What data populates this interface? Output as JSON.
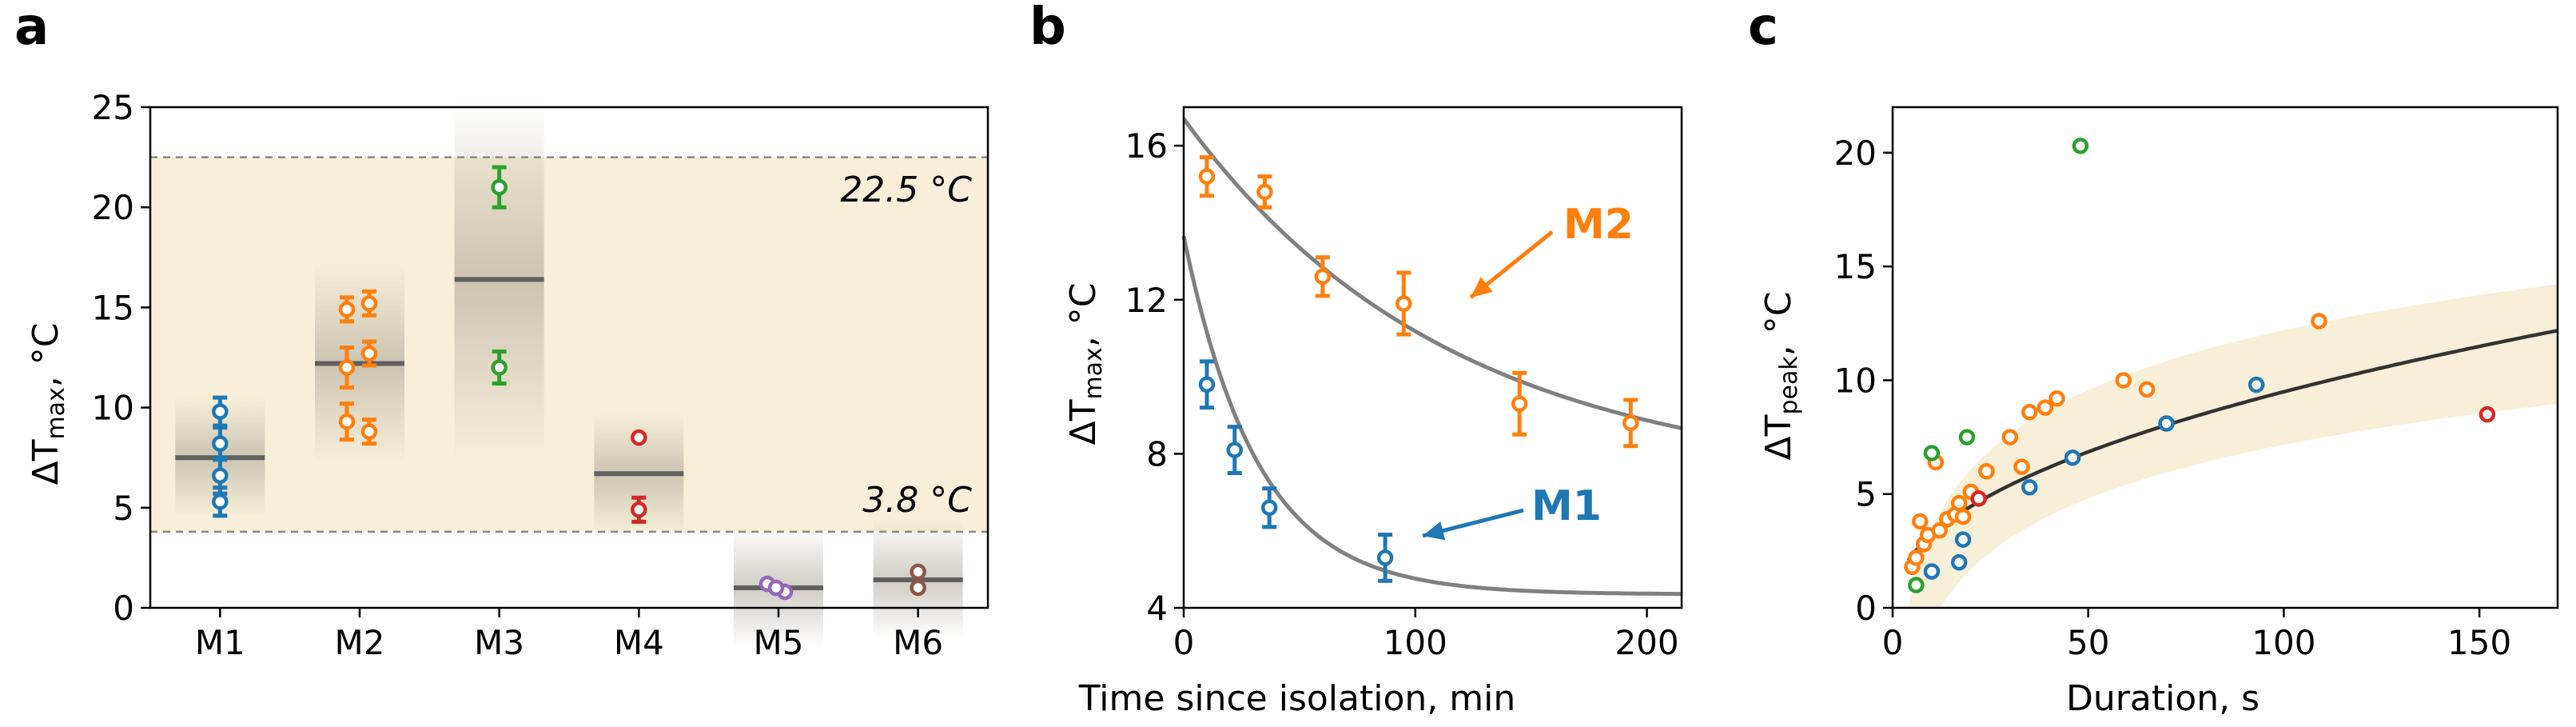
{
  "panels": {
    "a": "a",
    "b": "b",
    "c": "c"
  },
  "colors": {
    "M1": "#1f77b4",
    "M2": "#ff7f0e",
    "M3": "#2ca02c",
    "M4": "#d62728",
    "M5": "#9467bd",
    "M6": "#8c564b",
    "band": "#f7efd8",
    "fit": "#808080",
    "median": "#606060",
    "curve": "#333333"
  },
  "chart_data": [
    {
      "id": "a",
      "type": "scatter",
      "title": "",
      "xlabel": "",
      "ylabel_main": "ΔT",
      "ylabel_sub": "max",
      "ylabel_unit": ", °C",
      "categories": [
        "M1",
        "M2",
        "M3",
        "M4",
        "M5",
        "M6"
      ],
      "ylim": [
        0,
        25
      ],
      "yticks": [
        0,
        5,
        10,
        15,
        20,
        25
      ],
      "reference_lines": [
        {
          "value": 22.5,
          "label": "22.5 °C"
        },
        {
          "value": 3.8,
          "label": "3.8 °C"
        }
      ],
      "band": [
        3.8,
        22.5
      ],
      "medians": [
        7.5,
        12.2,
        16.4,
        6.7,
        1.0,
        1.4
      ],
      "points": [
        {
          "category": "M1",
          "values": [
            9.8,
            8.2,
            6.6,
            5.3
          ],
          "errors": [
            0.7,
            0.8,
            0.9,
            0.7
          ]
        },
        {
          "category": "M2",
          "values": [
            14.9,
            15.2,
            12.7,
            12.0,
            9.3,
            8.8
          ],
          "errors": [
            0.6,
            0.6,
            0.6,
            1.0,
            0.9,
            0.6
          ]
        },
        {
          "category": "M3",
          "values": [
            21.0,
            12.0
          ],
          "errors": [
            1.0,
            0.8
          ]
        },
        {
          "category": "M4",
          "values": [
            8.5,
            4.9
          ],
          "errors": [
            0,
            0.6
          ]
        },
        {
          "category": "M5",
          "values": [
            1.2,
            0.8,
            1.0
          ],
          "errors": [
            0,
            0,
            0
          ]
        },
        {
          "category": "M6",
          "values": [
            1.8,
            1.0
          ],
          "errors": [
            0,
            0
          ]
        }
      ]
    },
    {
      "id": "b",
      "type": "scatter",
      "xlabel": "Time since isolation, min",
      "ylabel_main": "ΔT",
      "ylabel_sub": "max",
      "ylabel_unit": ", °C",
      "xlim": [
        0,
        215
      ],
      "ylim": [
        4,
        17
      ],
      "xticks": [
        0,
        100,
        200
      ],
      "yticks": [
        4,
        8,
        12,
        16
      ],
      "series": [
        {
          "name": "M1",
          "x": [
            10,
            22,
            37,
            87
          ],
          "y": [
            9.8,
            8.1,
            6.6,
            5.3
          ],
          "errors": [
            0.6,
            0.6,
            0.5,
            0.6
          ],
          "fit": {
            "form": "exponential",
            "a": 9.3,
            "tau": 32,
            "c": 4.35
          }
        },
        {
          "name": "M2",
          "x": [
            10,
            35,
            60,
            95,
            145,
            193
          ],
          "y": [
            15.2,
            14.8,
            12.6,
            11.9,
            9.3,
            8.8
          ],
          "errors": [
            0.5,
            0.4,
            0.5,
            0.8,
            0.8,
            0.6
          ],
          "fit": {
            "form": "exponential",
            "a": 9.5,
            "tau": 115,
            "c": 7.2
          }
        }
      ],
      "callouts": [
        {
          "label": "M2",
          "series": "M2"
        },
        {
          "label": "M1",
          "series": "M1"
        }
      ]
    },
    {
      "id": "c",
      "type": "scatter",
      "xlabel": "Duration, s",
      "ylabel_main": "ΔT",
      "ylabel_sub": "peak",
      "ylabel_unit": ", °C",
      "xlim": [
        0,
        170
      ],
      "ylim": [
        0,
        22
      ],
      "xticks": [
        0,
        50,
        100,
        150
      ],
      "yticks": [
        0,
        5,
        10,
        15,
        20
      ],
      "fit": {
        "form": "power",
        "a": 1.09,
        "b": 0.47
      },
      "band_lower": {
        "form": "log",
        "a": 3.4,
        "b": -8.5
      },
      "band_upper": {
        "form": "log",
        "a": 3.8,
        "b": -5.3
      },
      "series": [
        {
          "name": "M1",
          "x": [
            10,
            17,
            18,
            35,
            46,
            70,
            93
          ],
          "y": [
            1.6,
            2.0,
            3.0,
            5.3,
            6.6,
            8.1,
            9.8
          ]
        },
        {
          "name": "M2",
          "x": [
            5,
            6,
            7,
            8,
            9,
            11,
            12,
            14,
            16,
            17,
            18,
            20,
            24,
            30,
            33,
            35,
            39,
            42,
            59,
            65,
            109
          ],
          "y": [
            1.8,
            2.2,
            3.8,
            2.8,
            3.2,
            6.4,
            3.4,
            3.9,
            4.1,
            4.6,
            4.0,
            5.1,
            6.0,
            7.5,
            6.2,
            8.6,
            8.8,
            9.2,
            10.0,
            9.6,
            12.6
          ]
        },
        {
          "name": "M3",
          "x": [
            6,
            10,
            19,
            48
          ],
          "y": [
            1.0,
            6.8,
            7.5,
            20.3
          ]
        },
        {
          "name": "M4",
          "x": [
            22,
            152
          ],
          "y": [
            4.8,
            8.5
          ]
        }
      ]
    }
  ]
}
